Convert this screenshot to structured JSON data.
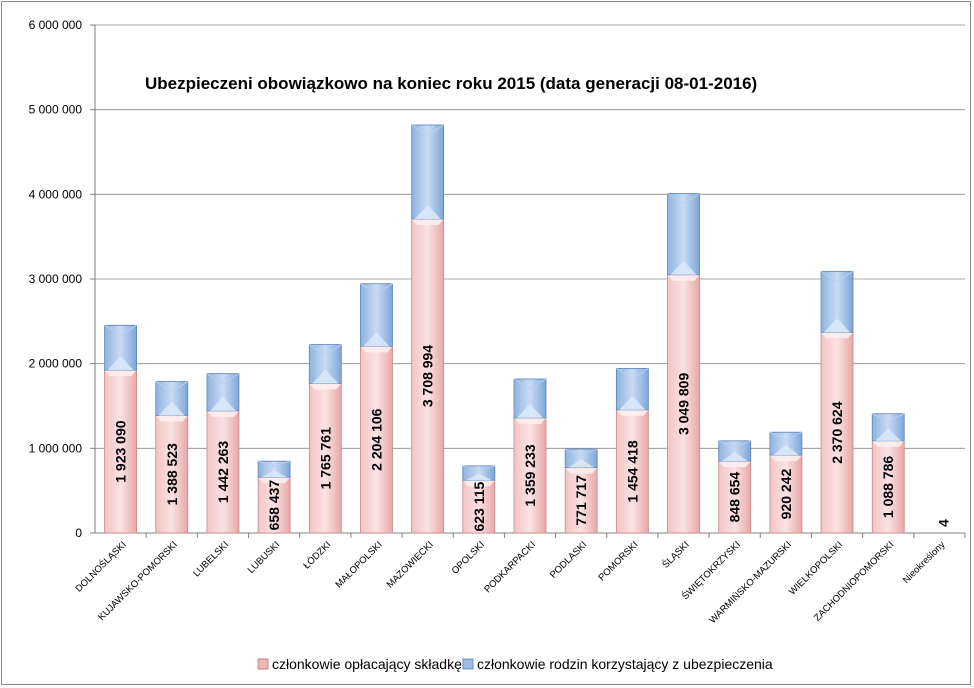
{
  "chart_data": {
    "type": "bar",
    "stacked": true,
    "title": "Ubezpieczeni obowiązkowo na koniec roku 2015 (data generacji 08-01-2016)",
    "categories": [
      "DOLNOŚLĄSKI",
      "KUJAWSKO-POMORSKI",
      "LUBELSKI",
      "LUBUSKI",
      "ŁÓDZKI",
      "MAŁOPOLSKI",
      "MAZOWIECKI",
      "OPOLSKI",
      "PODKARPACKI",
      "PODLASKI",
      "POMORSKI",
      "ŚLĄSKI",
      "ŚWIĘTOKRZYSKI",
      "WARMIŃSKO-MAZURSKI",
      "WIELKOPOLSKI",
      "ZACHODNIOPOMORSKI",
      "Nieokreślony"
    ],
    "series": [
      {
        "name": "członkowie opłacający składkę",
        "color": "#f2b8b8",
        "values": [
          1923090,
          1388523,
          1442263,
          658437,
          1765761,
          2204106,
          3708994,
          623115,
          1359233,
          771717,
          1454418,
          3049809,
          848654,
          920242,
          2370624,
          1088786,
          4
        ],
        "labels": [
          "1 923 090",
          "1 388 523",
          "1 442 263",
          "658 437",
          "1 765 761",
          "2 204 106",
          "3 708 994",
          "623 115",
          "1 359 233",
          "771 717",
          "1 454 418",
          "3 049 809",
          "848 654",
          "920 242",
          "2 370 624",
          "1 088 786",
          "4"
        ]
      },
      {
        "name": "członkowie rodzin korzystający z ubezpieczenia",
        "color": "#9dbde6",
        "values": [
          530000,
          400000,
          440000,
          190000,
          460000,
          740000,
          1110000,
          170000,
          460000,
          220000,
          490000,
          960000,
          240000,
          270000,
          720000,
          320000,
          0
        ]
      }
    ],
    "ylim": [
      0,
      6000000
    ],
    "yticks": [
      0,
      1000000,
      2000000,
      3000000,
      4000000,
      5000000,
      6000000
    ],
    "ytick_labels": [
      "0",
      "1 000 000",
      "2 000 000",
      "3 000 000",
      "4 000 000",
      "5 000 000",
      "6 000 000"
    ],
    "grid": true,
    "legend_position": "bottom"
  }
}
